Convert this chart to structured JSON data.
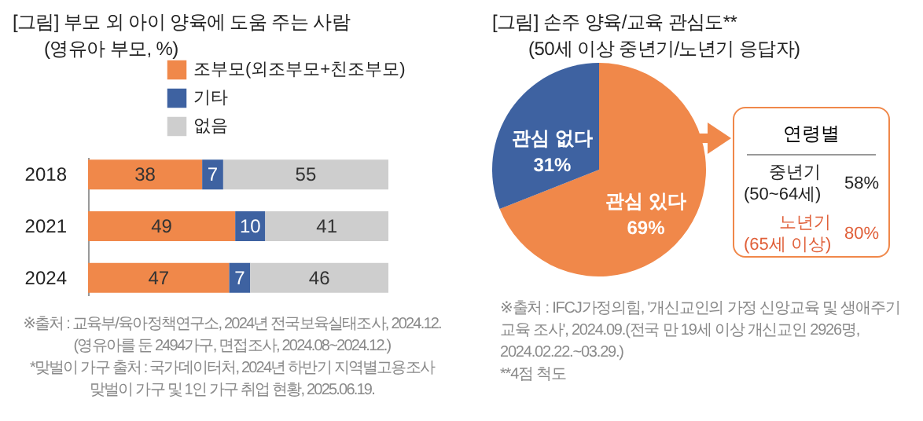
{
  "chart_data": [
    {
      "type": "bar",
      "orientation": "horizontal",
      "stacked": true,
      "title": "[그림] 부모 외 아이 양육에 도움 주는 사람",
      "subtitle": "(영유아 부모, %)",
      "categories": [
        "2018",
        "2021",
        "2024"
      ],
      "series": [
        {
          "name": "조부모(외조부모+친조부모)",
          "color": "#f0884a",
          "values": [
            38,
            49,
            47
          ]
        },
        {
          "name": "기타",
          "color": "#3e62a1",
          "values": [
            7,
            10,
            7
          ]
        },
        {
          "name": "없음",
          "color": "#cecece",
          "values": [
            55,
            41,
            46
          ]
        }
      ],
      "data_labels": true,
      "legend": "top",
      "annotations": [
        "※출처 : 교육부/육아정책연구소, 2024년 전국보육실태조사, 2024.12.\n(영유아를 둔 2494가구, 면접조사, 2024.08~2024.12.)",
        "*맞벌이 가구 출처 : 국가데이터처, 2024년 하반기 지역별고용조사\n맞벌이 가구 및 1인 가구 취업 현황, 2025.06.19."
      ]
    },
    {
      "type": "pie",
      "title": "[그림] 손주 양육/교육 관심도**",
      "subtitle": "(50세 이상 중년기/노년기 응답자)",
      "categories": [
        "관심 있다",
        "관심 없다"
      ],
      "values": [
        69,
        31
      ],
      "colors": [
        "#f0884a",
        "#3e62a1"
      ],
      "value_labels": [
        "69%",
        "31%"
      ],
      "annotations": [
        "※출처 : IFCJ가정의힘, '개신교인의 가정 신앙교육 및 생애주기 교육 조사', 2024.09.(전국 만 19세 이상 개신교인 2926명, 2024.02.22.~03.29.)",
        "**4점 척도"
      ]
    },
    {
      "type": "other",
      "title": "연령별",
      "annotations": [
        "중년기\n(50~64세)",
        "58%",
        "노년기\n(65세 이상)",
        "80%"
      ]
    }
  ]
}
